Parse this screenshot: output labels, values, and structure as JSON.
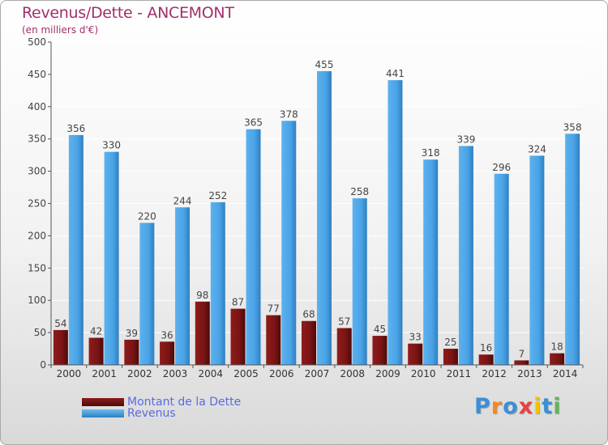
{
  "title": "Revenus/Dette - ANCEMONT",
  "subtitle": "(en milliers d'€)",
  "chart_data": {
    "type": "bar",
    "title": "Revenus/Dette - ANCEMONT",
    "subtitle": "(en milliers d'€)",
    "categories": [
      "2000",
      "2001",
      "2002",
      "2003",
      "2004",
      "2005",
      "2006",
      "2007",
      "2008",
      "2009",
      "2010",
      "2011",
      "2012",
      "2013",
      "2014"
    ],
    "series": [
      {
        "name": "Montant de la Dette",
        "color": "#7a1414",
        "values": [
          54,
          42,
          39,
          36,
          98,
          87,
          77,
          68,
          57,
          45,
          33,
          25,
          16,
          7,
          18
        ]
      },
      {
        "name": "Revenus",
        "color": "#4aa3e6",
        "values": [
          356,
          330,
          220,
          244,
          252,
          365,
          378,
          455,
          258,
          441,
          318,
          339,
          296,
          324,
          358
        ]
      }
    ],
    "yticks": [
      0,
      50,
      100,
      150,
      200,
      250,
      300,
      350,
      400,
      450,
      500
    ],
    "ylim": [
      0,
      500
    ],
    "grid": true,
    "legend_position": "bottom-left"
  },
  "legend": [
    {
      "label": "Montant de la Dette",
      "color": "#7a1414"
    },
    {
      "label": "Revenus",
      "color": "#4aa3e6"
    }
  ],
  "logo": {
    "letters": [
      "P",
      "r",
      "o",
      "x",
      "i",
      "t",
      "i"
    ],
    "colors": [
      "#3a8fd8",
      "#f08a24",
      "#3a8fd8",
      "#e84040",
      "#f2c300",
      "#3a8fd8",
      "#5cb85c"
    ]
  }
}
